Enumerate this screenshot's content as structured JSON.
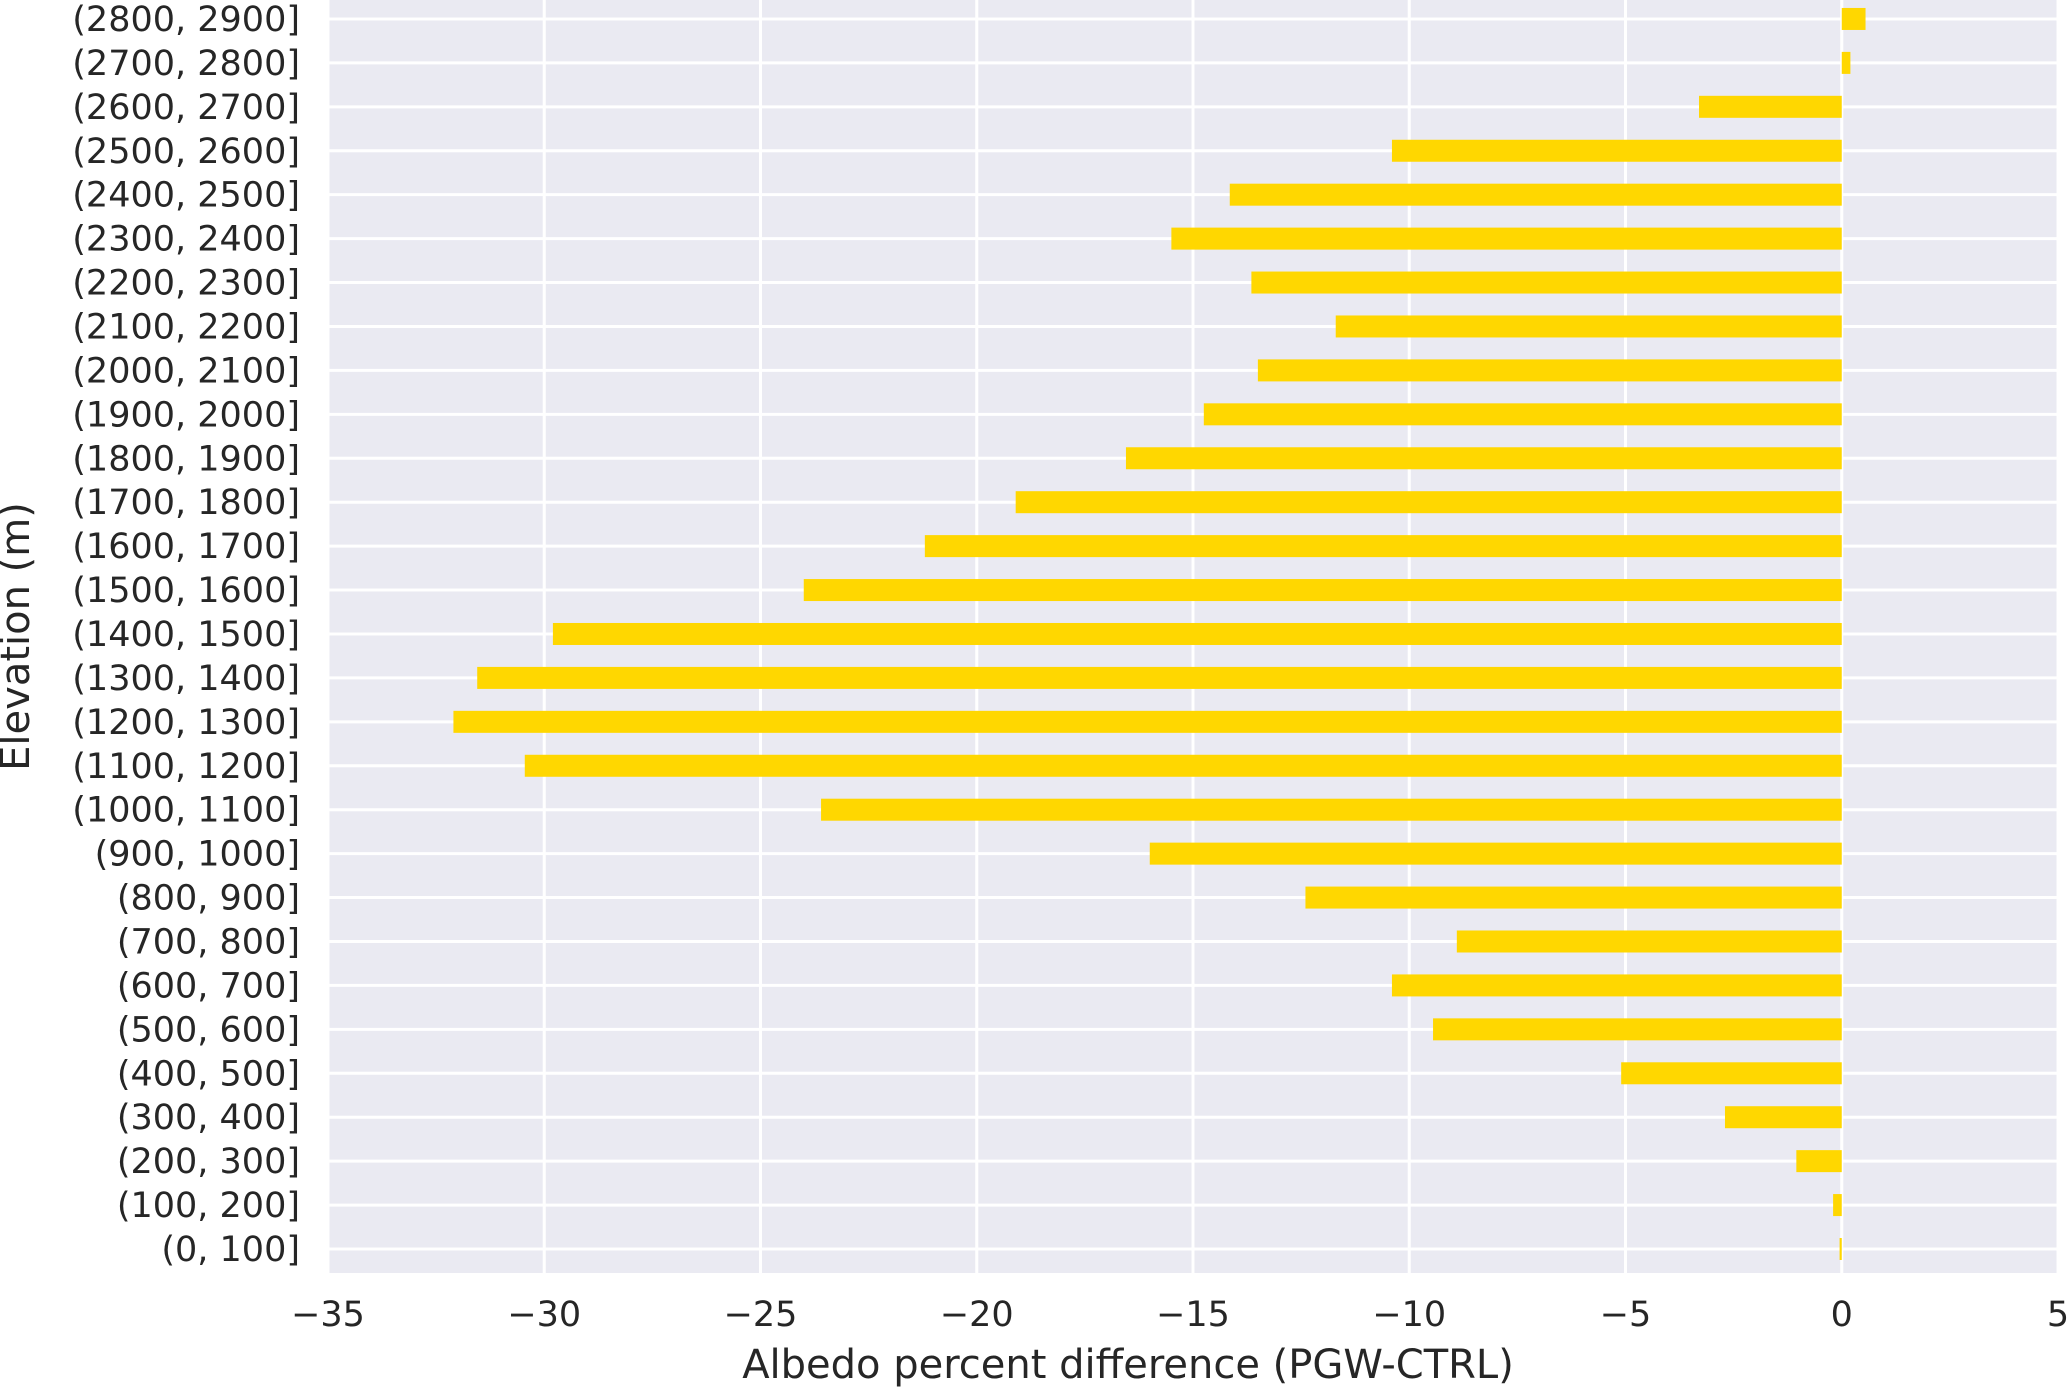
{
  "chart_data": {
    "type": "bar",
    "orientation": "horizontal",
    "categories": [
      "(0, 100]",
      "(100, 200]",
      "(200, 300]",
      "(300, 400]",
      "(400, 500]",
      "(500, 600]",
      "(600, 700]",
      "(700, 800]",
      "(800, 900]",
      "(900, 1000]",
      "(1000, 1100]",
      "(1100, 1200]",
      "(1200, 1300]",
      "(1300, 1400]",
      "(1400, 1500]",
      "(1500, 1600]",
      "(1600, 1700]",
      "(1700, 1800]",
      "(1800, 1900]",
      "(1900, 2000]",
      "(2000, 2100]",
      "(2100, 2200]",
      "(2200, 2300]",
      "(2300, 2400]",
      "(2400, 2500]",
      "(2500, 2600]",
      "(2600, 2700]",
      "(2700, 2800]",
      "(2800, 2900]"
    ],
    "values": [
      -0.05,
      -0.2,
      -1.05,
      -2.7,
      -5.1,
      -9.45,
      -10.4,
      -8.9,
      -12.4,
      -16.0,
      -23.6,
      -30.45,
      -32.1,
      -31.55,
      -29.8,
      -24.0,
      -21.2,
      -19.1,
      -16.55,
      -14.75,
      -13.5,
      -11.7,
      -13.65,
      -15.5,
      -14.15,
      -10.4,
      -3.3,
      0.2,
      0.55
    ],
    "xlabel": "Albedo percent difference (PGW-CTRL)",
    "ylabel": "Elevation (m)",
    "xlim": [
      -35,
      5
    ],
    "xticks": [
      -35,
      -30,
      -25,
      -20,
      -15,
      -10,
      -5,
      0,
      5
    ],
    "xtick_labels": [
      "−35",
      "−30",
      "−25",
      "−20",
      "−15",
      "−10",
      "−5",
      "0",
      "5"
    ],
    "grid": true,
    "bar_color": "#FFD700",
    "background_color": "#EAEAF2",
    "grid_color": "#FFFFFF"
  }
}
